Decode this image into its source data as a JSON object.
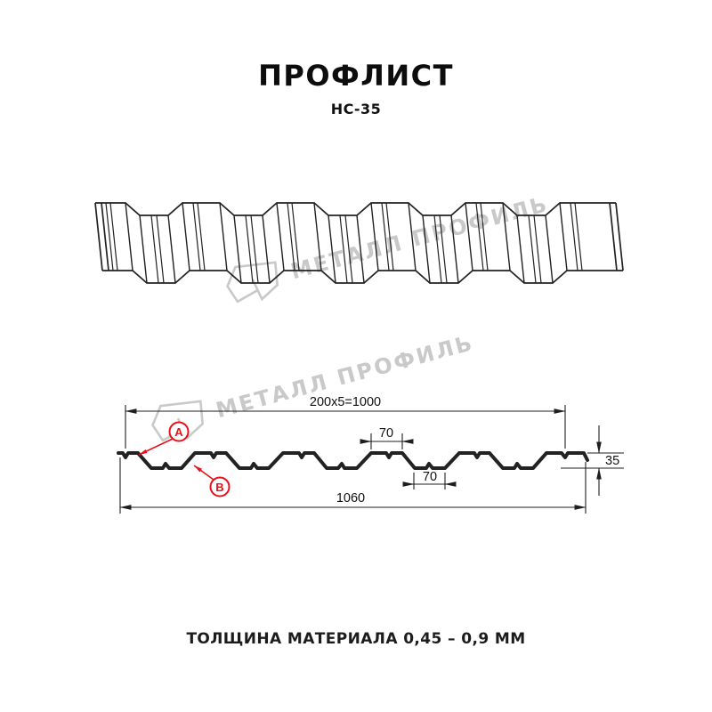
{
  "header": {
    "title": "ПРОФЛИСТ",
    "subtitle": "НС-35"
  },
  "footer": {
    "text": "ТОЛЩИНА МАТЕРИАЛА 0,45 – 0,9 ММ"
  },
  "watermark": {
    "text": "МЕТАЛЛ ПРОФИЛЬ",
    "color": "#c9c9c9"
  },
  "diagram": {
    "profile_name": "НС-35",
    "dimensions": {
      "working_width": "200x5=1000",
      "rib_top_width": "70",
      "rib_bottom_width": "70",
      "profile_height": "35",
      "overall_width": "1060"
    },
    "side_labels": {
      "a": "А",
      "b": "В"
    },
    "colors": {
      "line": "#222222",
      "annotation_red": "#e8101a"
    }
  }
}
